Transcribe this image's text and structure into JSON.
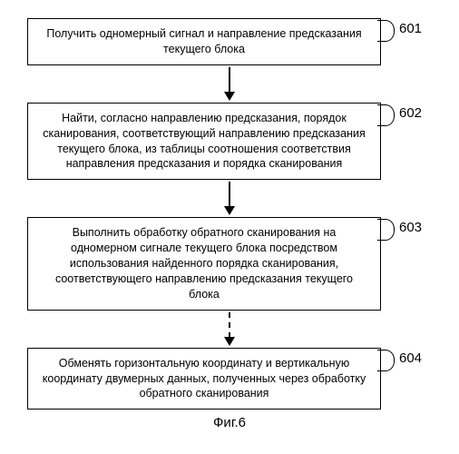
{
  "type": "flowchart",
  "background_color": "#ffffff",
  "border_color": "#000000",
  "font_family": "Arial",
  "node_fontsize": 12.5,
  "label_fontsize": 15,
  "caption_fontsize": 15,
  "nodes": [
    {
      "id": "n1",
      "label": "601",
      "text": "Получить одномерный сигнал и направление предсказания текущего блока"
    },
    {
      "id": "n2",
      "label": "602",
      "text": "Найти, согласно направлению предсказания, порядок сканирования, соответствующий направлению предсказания текущего блока, из таблицы соотношения соответствия направления предсказания и порядка сканирования"
    },
    {
      "id": "n3",
      "label": "603",
      "text": "Выполнить обработку обратного сканирования на одномерном сигнале текущего блока посредством использования найденного порядка сканирования, соответствующего направлению предсказания текущего блока"
    },
    {
      "id": "n4",
      "label": "604",
      "text": "Обменять горизонтальную координату и вертикальную координату двумерных данных, полученных через обработку обратного сканирования"
    }
  ],
  "edges": [
    {
      "from": "n1",
      "to": "n2",
      "style": "solid"
    },
    {
      "from": "n2",
      "to": "n3",
      "style": "solid"
    },
    {
      "from": "n3",
      "to": "n4",
      "style": "dashed"
    }
  ],
  "caption": "Фиг.6"
}
